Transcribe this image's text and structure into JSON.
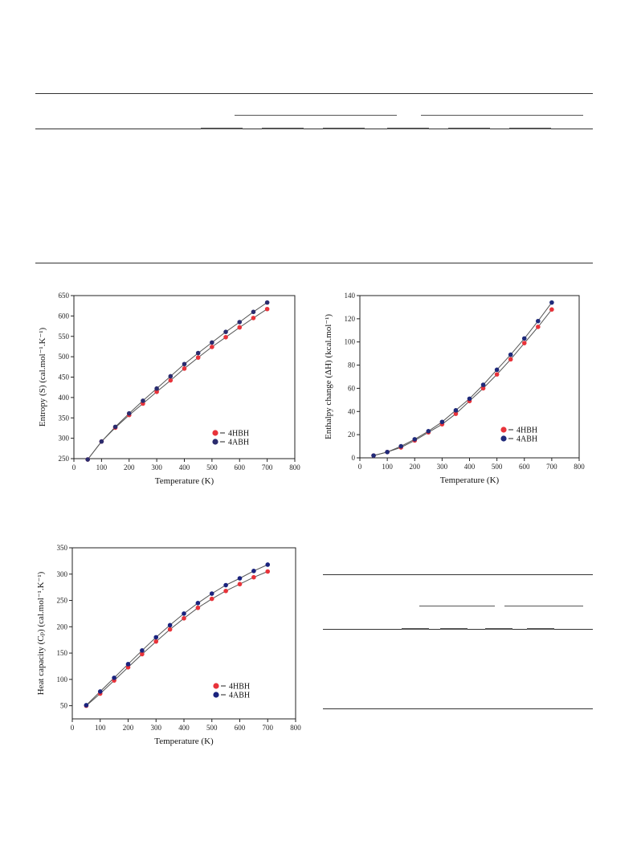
{
  "chart_data": [
    {
      "type": "line",
      "xlabel": "Temperature (K)",
      "ylabel": "Entropy (S)  (cal.mol⁻¹.K⁻¹)",
      "xlim": [
        0,
        800
      ],
      "ylim": [
        250,
        650
      ],
      "xticks": [
        0,
        100,
        200,
        300,
        400,
        500,
        600,
        700,
        800
      ],
      "yticks": [
        250,
        300,
        350,
        400,
        450,
        500,
        550,
        600,
        650
      ],
      "legend_position": "bottom-right",
      "x": [
        50,
        100,
        150,
        200,
        250,
        300,
        350,
        400,
        450,
        500,
        550,
        600,
        650,
        700
      ],
      "series": [
        {
          "name": "4HBH",
          "color": "#e8333a",
          "values": [
            248,
            292,
            326,
            357,
            385,
            414,
            442,
            471,
            498,
            524,
            548,
            572,
            595,
            617
          ]
        },
        {
          "name": "4ABH",
          "color": "#2b2c6e",
          "values": [
            248,
            292,
            328,
            361,
            392,
            422,
            452,
            482,
            509,
            535,
            561,
            585,
            610,
            633
          ]
        }
      ]
    },
    {
      "type": "line",
      "xlabel": "Temperature (K)",
      "ylabel": "Enthalpy change  (ΔH)     (kcal.mol⁻¹)",
      "xlim": [
        0,
        800
      ],
      "ylim": [
        0,
        140
      ],
      "xticks": [
        0,
        100,
        200,
        300,
        400,
        500,
        600,
        700,
        800
      ],
      "yticks": [
        0,
        20,
        40,
        60,
        80,
        100,
        120,
        140
      ],
      "legend_position": "bottom-right",
      "x": [
        50,
        100,
        150,
        200,
        250,
        300,
        350,
        400,
        450,
        500,
        550,
        600,
        650,
        700
      ],
      "series": [
        {
          "name": "4HBH",
          "color": "#e8333a",
          "values": [
            2,
            5,
            9,
            15,
            22,
            29,
            38,
            49,
            60,
            72,
            85,
            99,
            113,
            128
          ]
        },
        {
          "name": "4ABH",
          "color": "#1f2a7a",
          "values": [
            2,
            5,
            10,
            16,
            23,
            31,
            41,
            51,
            63,
            76,
            89,
            103,
            118,
            134
          ]
        }
      ]
    },
    {
      "type": "line",
      "xlabel": "Temperature (K)",
      "ylabel": "Heat capacity (Cₚ)   (cal.mol⁻¹.K⁻¹)",
      "xlim": [
        0,
        800
      ],
      "ylim": [
        25,
        350
      ],
      "xticks": [
        0,
        100,
        200,
        300,
        400,
        500,
        600,
        700,
        800
      ],
      "yticks": [
        50,
        100,
        150,
        200,
        250,
        300,
        350
      ],
      "legend_position": "bottom-right",
      "x": [
        50,
        100,
        150,
        200,
        250,
        300,
        350,
        400,
        450,
        500,
        550,
        600,
        650,
        700
      ],
      "series": [
        {
          "name": "4HBH",
          "color": "#e8333a",
          "values": [
            50,
            73,
            98,
            123,
            148,
            172,
            195,
            216,
            236,
            253,
            268,
            281,
            294,
            305
          ]
        },
        {
          "name": "4ABH",
          "color": "#1a237e",
          "values": [
            51,
            77,
            103,
            129,
            155,
            180,
            203,
            225,
            245,
            263,
            279,
            292,
            306,
            318
          ]
        }
      ]
    }
  ]
}
